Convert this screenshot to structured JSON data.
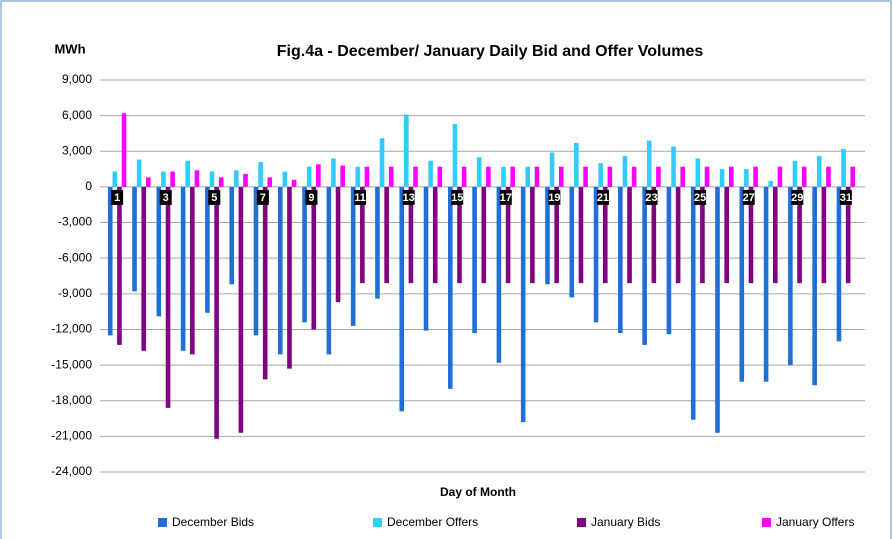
{
  "chart_data": {
    "type": "bar",
    "title": "Fig.4a - December/ January Daily Bid and Offer Volumes",
    "y_label": "MWh",
    "x_label": "Day of Month",
    "categories": [
      1,
      null,
      3,
      null,
      5,
      null,
      7,
      null,
      9,
      null,
      11,
      null,
      13,
      null,
      15,
      null,
      17,
      null,
      19,
      null,
      21,
      null,
      23,
      null,
      25,
      null,
      27,
      null,
      29,
      null,
      31
    ],
    "series": [
      {
        "name": "December Bids",
        "color": "#1f6fd6",
        "values": [
          -12500,
          -8800,
          -10900,
          -13800,
          -10600,
          -8200,
          -12500,
          -14100,
          -11400,
          -14100,
          -11700,
          -9400,
          -18900,
          -12100,
          -17000,
          -12300,
          -14800,
          -19800,
          -8200,
          -9300,
          -11400,
          -12300,
          -13300,
          -12400,
          -19600,
          -20700,
          -16400,
          -16400,
          -15000,
          -16700,
          -13000
        ]
      },
      {
        "name": "December Offers",
        "color": "#33ccff",
        "values": [
          1300,
          2300,
          1300,
          2200,
          1300,
          1400,
          2100,
          1300,
          1700,
          2400,
          1700,
          4100,
          6100,
          2200,
          5300,
          2500,
          1700,
          1700,
          2900,
          3700,
          2000,
          2600,
          3900,
          3400,
          2400,
          1500,
          1500,
          500,
          2200,
          2600,
          3200
        ]
      },
      {
        "name": "January Bids",
        "color": "#800080",
        "values": [
          -13300,
          -13800,
          -18600,
          -14100,
          -21200,
          -20700,
          -16200,
          -15300,
          -12000,
          -9700,
          -8100,
          -8100,
          -8100,
          -8100,
          -8100,
          -8100,
          -8100,
          -8100,
          -8100,
          -8100,
          -8100,
          -8100,
          -8100,
          -8100,
          -8100,
          -8100,
          -8100,
          -8100,
          -8100,
          -8100,
          -8100
        ]
      },
      {
        "name": "January Offers",
        "color": "#ff00ff",
        "values": [
          6200,
          800,
          1300,
          1400,
          800,
          1100,
          800,
          600,
          1900,
          1800,
          1700,
          1700,
          1700,
          1700,
          1700,
          1700,
          1700,
          1700,
          1700,
          1700,
          1700,
          1700,
          1700,
          1700,
          1700,
          1700,
          1700,
          1700,
          1700,
          1700,
          1700
        ]
      }
    ],
    "ylim": [
      -24000,
      9000
    ],
    "yticks": [
      {
        "value": -24000,
        "label": "-24,000"
      },
      {
        "value": -21000,
        "label": "-21,000"
      },
      {
        "value": -18000,
        "label": "-18,000"
      },
      {
        "value": -15000,
        "label": "-15,000"
      },
      {
        "value": -12000,
        "label": "-12,000"
      },
      {
        "value": -9000,
        "label": "-9,000"
      },
      {
        "value": -6000,
        "label": "-6,000"
      },
      {
        "value": -3000,
        "label": "-3,000"
      },
      0,
      {
        "value": 3000,
        "label": "3,000"
      },
      {
        "value": 6000,
        "label": "6,000"
      },
      {
        "value": 9000,
        "label": "9,000"
      }
    ],
    "grid": true
  }
}
